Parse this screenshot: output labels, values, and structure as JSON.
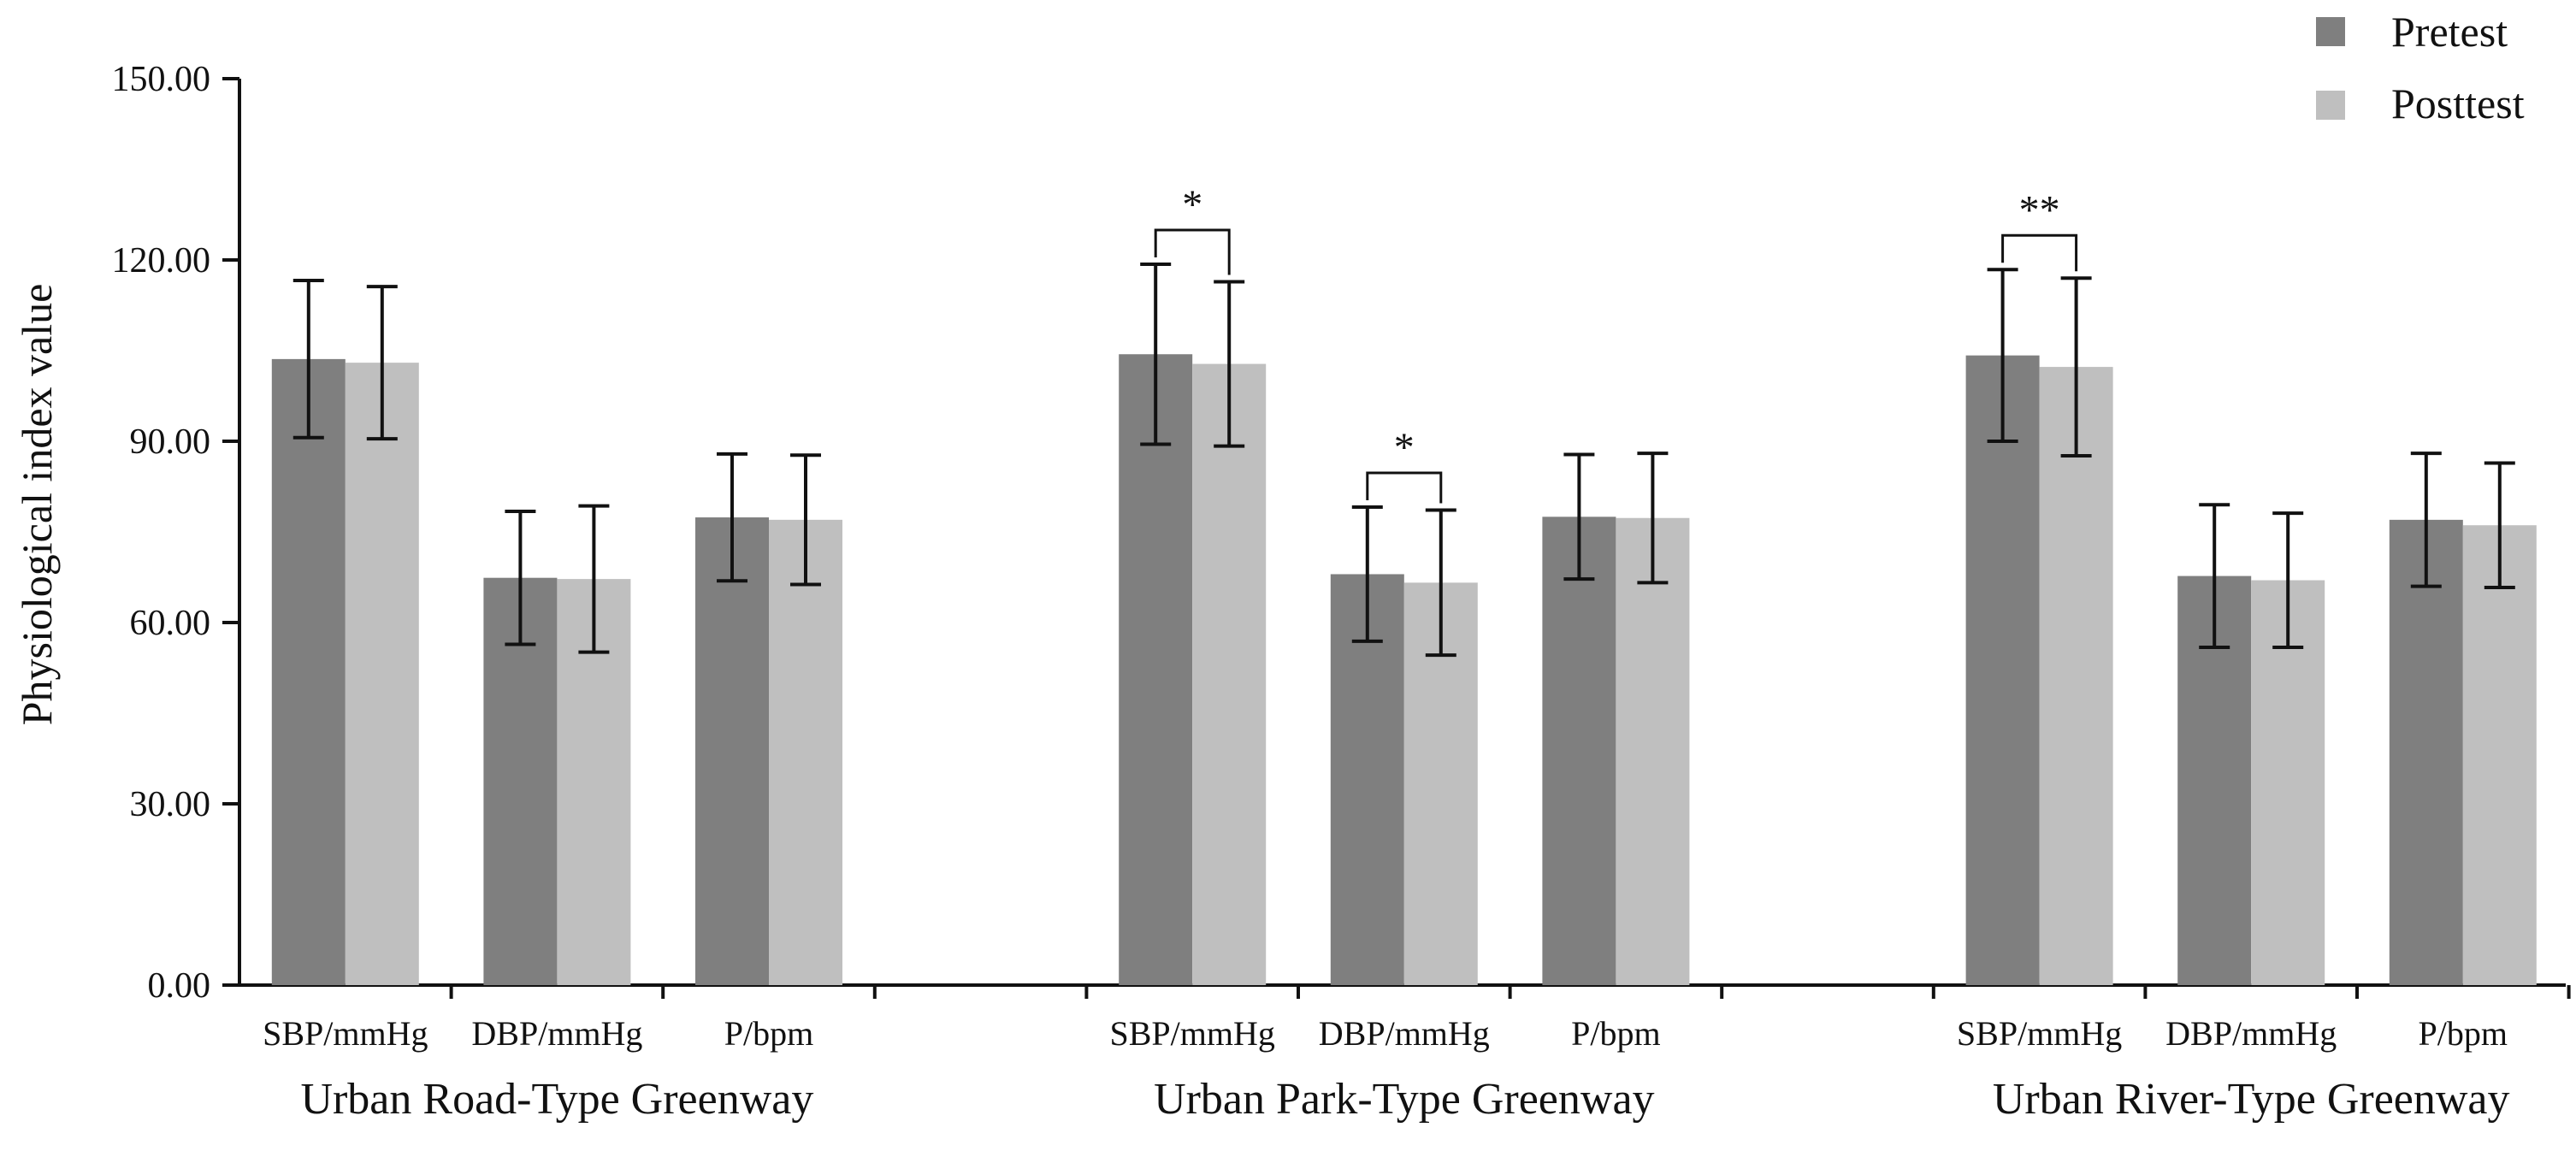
{
  "chart_data": {
    "type": "bar",
    "title": "",
    "ylabel": "Physiological index value",
    "xlabel": "",
    "ylim": [
      0,
      150
    ],
    "yticks": [
      "0.00",
      "30.00",
      "60.00",
      "90.00",
      "120.00",
      "150.00"
    ],
    "legend": {
      "position": "top-right",
      "entries": [
        "Pretest",
        "Posttest"
      ]
    },
    "colors": {
      "Pretest": "#7f7f7f",
      "Posttest": "#bfbfbf",
      "axis": "#111111",
      "background": "#ffffff"
    },
    "groups": [
      {
        "name": "Urban Road-Type Greenway",
        "categories": [
          {
            "label": "SBP/mmHg",
            "pretest": 103.6,
            "pretest_err": 13.0,
            "posttest": 103.0,
            "posttest_err": 12.6,
            "sig": ""
          },
          {
            "label": "DBP/mmHg",
            "pretest": 67.4,
            "pretest_err": 11.0,
            "posttest": 67.2,
            "posttest_err": 12.1,
            "sig": ""
          },
          {
            "label": "P/bpm",
            "pretest": 77.4,
            "pretest_err": 10.5,
            "posttest": 77.0,
            "posttest_err": 10.7,
            "sig": ""
          }
        ]
      },
      {
        "name": "Urban Park-Type Greenway",
        "categories": [
          {
            "label": "SBP/mmHg",
            "pretest": 104.4,
            "pretest_err": 14.9,
            "posttest": 102.8,
            "posttest_err": 13.6,
            "sig": "*"
          },
          {
            "label": "DBP/mmHg",
            "pretest": 68.0,
            "pretest_err": 11.1,
            "posttest": 66.6,
            "posttest_err": 12.0,
            "sig": "*"
          },
          {
            "label": "P/bpm",
            "pretest": 77.5,
            "pretest_err": 10.3,
            "posttest": 77.3,
            "posttest_err": 10.7,
            "sig": ""
          }
        ]
      },
      {
        "name": "Urban River-Type Greenway",
        "categories": [
          {
            "label": "SBP/mmHg",
            "pretest": 104.2,
            "pretest_err": 14.2,
            "posttest": 102.3,
            "posttest_err": 14.7,
            "sig": "**"
          },
          {
            "label": "DBP/mmHg",
            "pretest": 67.7,
            "pretest_err": 11.8,
            "posttest": 67.0,
            "posttest_err": 11.1,
            "sig": ""
          },
          {
            "label": "P/bpm",
            "pretest": 77.0,
            "pretest_err": 11.0,
            "posttest": 76.1,
            "posttest_err": 10.3,
            "sig": ""
          }
        ]
      }
    ]
  }
}
